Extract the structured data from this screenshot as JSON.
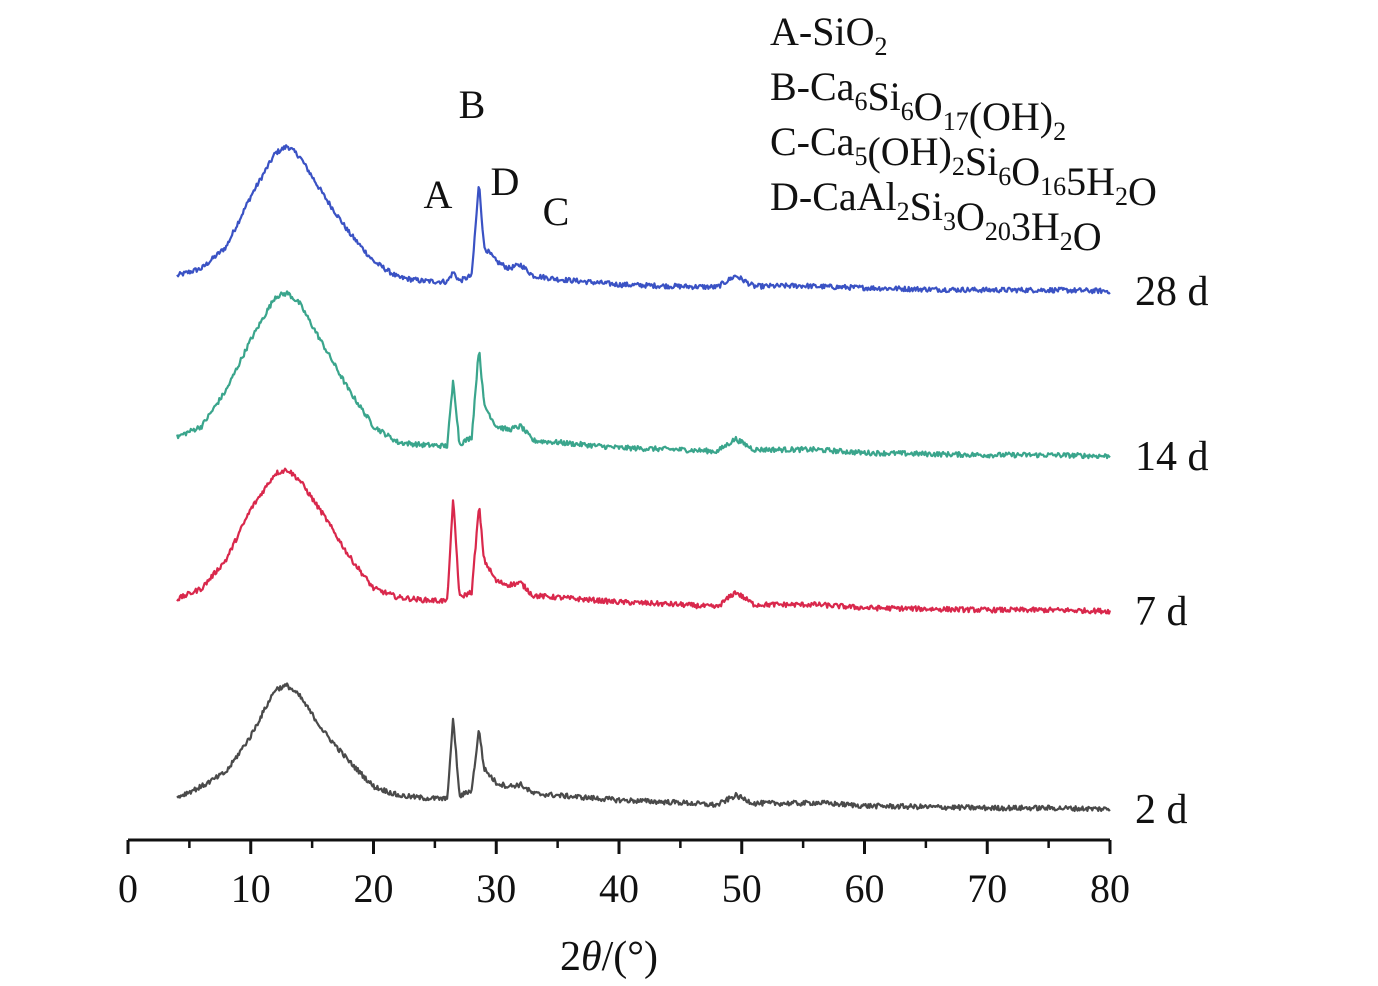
{
  "chart_data": {
    "type": "line",
    "xlabel_prefix": "2",
    "xlabel_symbol": "θ",
    "xlabel_suffix": "/(°)",
    "ylabel": "",
    "xlim": [
      0,
      80
    ],
    "x_ticks": [
      "0",
      "10",
      "20",
      "30",
      "40",
      "50",
      "60",
      "70",
      "80"
    ],
    "grid": false,
    "y_axis_shown": false,
    "legend": [
      {
        "letter": "A",
        "formula": "SiO₂"
      },
      {
        "letter": "B",
        "formula": "Ca₆Si₆O₁₇(OH)₂"
      },
      {
        "letter": "C",
        "formula": "Ca₅(OH)₂Si₆O₁₆5H₂O"
      },
      {
        "letter": "D",
        "formula": "CaAl₂Si₃O₂₀3H₂O"
      }
    ],
    "legend_placement": "top-right",
    "peak_labels": [
      {
        "letter": "A",
        "x": 26.5
      },
      {
        "letter": "B",
        "x": 28.6
      },
      {
        "letter": "D",
        "x": 30.5
      },
      {
        "letter": "C",
        "x": 34.8
      }
    ],
    "series": [
      {
        "name": "28 d",
        "color": "#3a52c4",
        "offset": 3,
        "x": [
          4,
          6,
          8,
          10,
          12,
          13,
          14,
          16,
          18,
          20,
          22,
          24,
          26,
          26.5,
          27,
          28,
          28.6,
          29,
          30,
          31,
          32,
          33,
          35,
          40,
          45,
          48,
          49.5,
          51,
          55,
          56,
          60,
          65,
          70,
          75,
          80
        ],
        "y": [
          4,
          6,
          12,
          26,
          38,
          40,
          37,
          26,
          16,
          8,
          3.5,
          2.5,
          2.3,
          5,
          2.5,
          4,
          30,
          12,
          8,
          6,
          7,
          4,
          3,
          1.5,
          1,
          0.8,
          4,
          1,
          1.2,
          1,
          0.6,
          0.2,
          0,
          0,
          -0.3
        ]
      },
      {
        "name": "14 d",
        "color": "#3aa58c",
        "offset": 2,
        "x": [
          4,
          6,
          8,
          10,
          12,
          13,
          14,
          16,
          18,
          20,
          22,
          24,
          26,
          26.5,
          27,
          28,
          28.6,
          29,
          30,
          31,
          32,
          33,
          35,
          40,
          45,
          48,
          49.5,
          51,
          55,
          56,
          60,
          65,
          70,
          75,
          80
        ],
        "y": [
          5,
          8,
          18,
          32,
          44,
          45,
          42,
          30,
          18,
          8,
          3.5,
          2.8,
          2.5,
          21,
          3,
          5,
          30,
          14,
          8,
          7,
          8,
          4,
          3.5,
          2,
          1.5,
          1,
          4.5,
          1.5,
          1.5,
          1.5,
          0.6,
          0.3,
          0,
          0,
          -0.3
        ]
      },
      {
        "name": "7 d",
        "color": "#d9284c",
        "offset": 1,
        "x": [
          4,
          6,
          8,
          10,
          12,
          13,
          14,
          16,
          18,
          20,
          22,
          24,
          26,
          26.5,
          27,
          28,
          28.6,
          29,
          30,
          31,
          32,
          33,
          35,
          40,
          45,
          48,
          49.5,
          51,
          55,
          56,
          60,
          65,
          70,
          75,
          80
        ],
        "y": [
          3,
          6,
          14,
          28,
          38,
          39,
          36,
          26,
          15,
          6,
          3.5,
          2.8,
          2.5,
          31,
          3.5,
          5,
          29,
          14,
          8,
          7,
          7.5,
          4,
          3.5,
          2.2,
          1.5,
          0.8,
          5,
          1.5,
          1.5,
          1.5,
          0.6,
          0.3,
          0,
          0,
          -0.3
        ]
      },
      {
        "name": "2 d",
        "color": "#4a4a4a",
        "offset": 0,
        "x": [
          4,
          6,
          8,
          10,
          12,
          13,
          14,
          16,
          18,
          20,
          22,
          24,
          26,
          26.5,
          27,
          28,
          28.6,
          29,
          30,
          31,
          32,
          33,
          35,
          40,
          45,
          48,
          49.5,
          51,
          55,
          56,
          60,
          65,
          70,
          75,
          80
        ],
        "y": [
          3,
          6,
          10,
          20,
          33,
          34,
          31,
          21,
          13,
          6,
          3.5,
          2.8,
          2.5,
          25,
          3.2,
          5,
          22,
          11,
          7,
          6,
          6.5,
          4,
          3.5,
          2.2,
          1.5,
          0.8,
          3.5,
          1.3,
          1.3,
          1.5,
          0.6,
          0.3,
          0,
          0,
          -0.3
        ]
      }
    ]
  }
}
